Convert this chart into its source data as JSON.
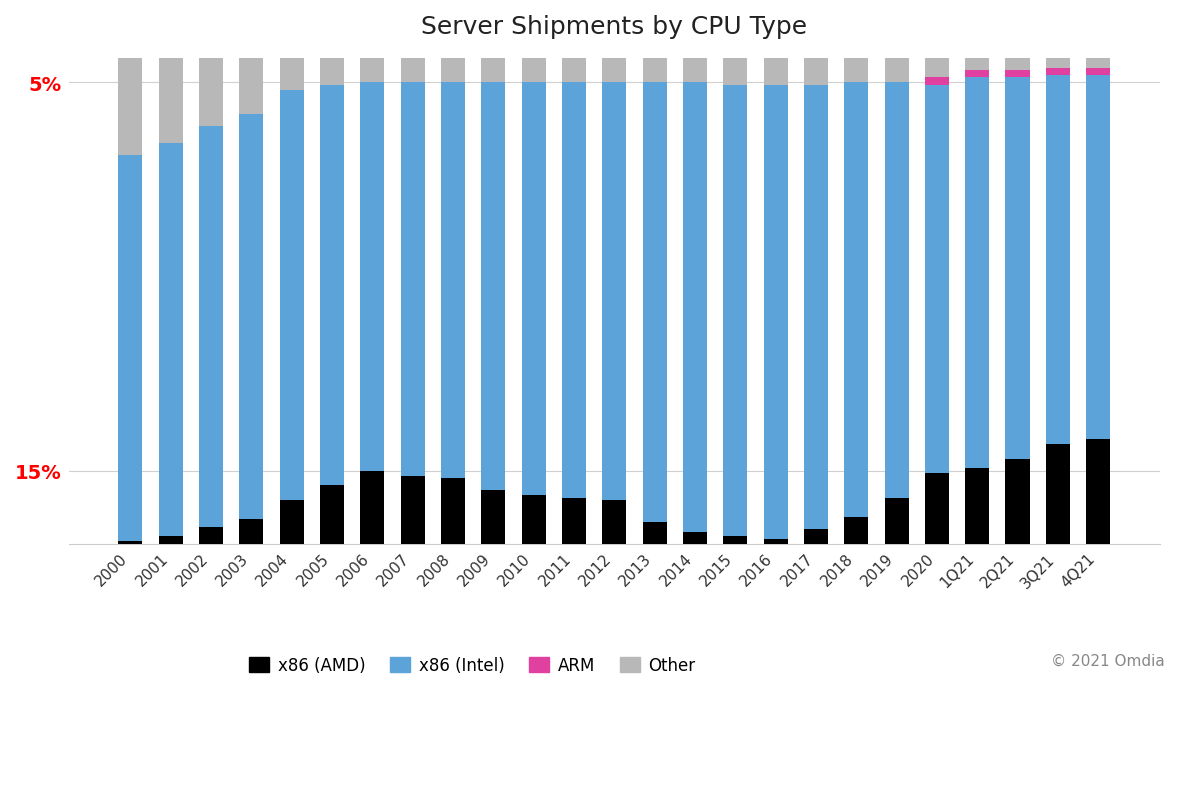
{
  "title": "Server Shipments by CPU Type",
  "categories": [
    "2000",
    "2001",
    "2002",
    "2003",
    "2004",
    "2005",
    "2006",
    "2007",
    "2008",
    "2009",
    "2010",
    "2011",
    "2012",
    "2013",
    "2014",
    "2015",
    "2016",
    "2017",
    "2018",
    "2019",
    "2020",
    "1Q21",
    "2Q21",
    "3Q21",
    "4Q21"
  ],
  "amd": [
    0.5,
    1.5,
    3.5,
    5.0,
    9.0,
    12.0,
    15.0,
    14.0,
    13.5,
    11.0,
    10.0,
    9.5,
    9.0,
    4.5,
    2.5,
    1.5,
    1.0,
    3.0,
    5.5,
    9.5,
    14.5,
    15.5,
    17.5,
    20.5,
    21.5
  ],
  "intel": [
    79.5,
    81.0,
    82.5,
    83.5,
    84.5,
    82.5,
    80.0,
    81.0,
    81.5,
    84.0,
    85.0,
    85.5,
    86.0,
    90.5,
    92.5,
    93.0,
    93.5,
    91.5,
    89.5,
    85.5,
    80.0,
    80.5,
    78.5,
    76.0,
    75.0
  ],
  "arm": [
    0.0,
    0.0,
    0.0,
    0.0,
    0.0,
    0.0,
    0.0,
    0.0,
    0.0,
    0.0,
    0.0,
    0.0,
    0.0,
    0.0,
    0.0,
    0.0,
    0.0,
    0.0,
    0.0,
    0.0,
    1.5,
    1.5,
    1.5,
    1.5,
    1.5
  ],
  "other": [
    20.0,
    17.5,
    14.0,
    11.5,
    6.5,
    5.5,
    5.0,
    5.0,
    5.0,
    5.0,
    5.0,
    5.0,
    5.0,
    5.0,
    5.0,
    5.5,
    5.5,
    5.5,
    5.0,
    5.0,
    4.0,
    2.5,
    2.5,
    2.0,
    2.0
  ],
  "color_amd": "#000000",
  "color_intel": "#5ba3d9",
  "color_arm": "#e040a0",
  "color_other": "#b8b8b8",
  "background_color": "#ffffff",
  "title_fontsize": 18,
  "legend_labels": [
    "x86 (AMD)",
    "x86 (Intel)",
    "ARM",
    "Other"
  ],
  "copyright_text": "© 2021 Omdia",
  "ytick_15_value": 15,
  "ytick_5_value": 95,
  "ymax": 100
}
